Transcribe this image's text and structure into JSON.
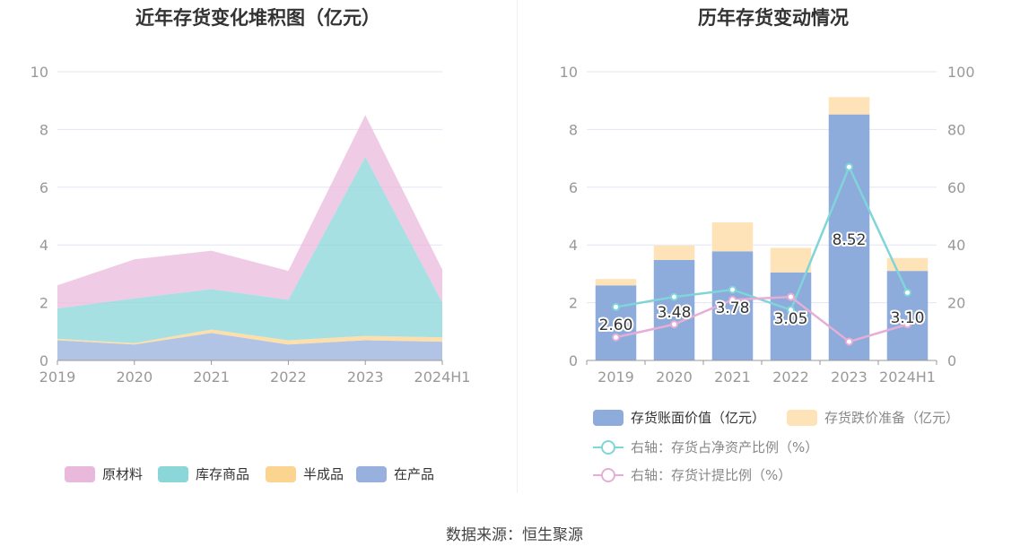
{
  "left_title": "近年存货变化堆积图（亿元）",
  "right_title": "历年存货变动情况",
  "source": "数据来源：恒生聚源",
  "colors": {
    "raw": "#e9b9dc",
    "finished": "#8ad6d9",
    "semi": "#fbd48f",
    "wip": "#98b0de",
    "book": "#8dabdb",
    "reserve": "#fde3b7",
    "line_ratio": "#7fd5d9",
    "line_accrual": "#e6aed6",
    "grid": "#e3e6f3",
    "axis": "#999999"
  },
  "left_legend": [
    "原材料",
    "库存商品",
    "半成品",
    "在产品"
  ],
  "right_legend": {
    "book": "存货账面价值（亿元）",
    "reserve": "存货跌价准备（亿元）",
    "ratio": "右轴：存货占净资产比例（%）",
    "accrual": "右轴：存货计提比例（%）"
  },
  "chart_data": [
    {
      "type": "area",
      "stacked": true,
      "title": "近年存货变化堆积图（亿元）",
      "categories": [
        "2019",
        "2020",
        "2021",
        "2022",
        "2023",
        "2024H1"
      ],
      "ylim": [
        0,
        10
      ],
      "yticks": [
        0,
        2,
        4,
        6,
        8,
        10
      ],
      "grid": true,
      "legend_position": "bottom",
      "series": [
        {
          "name": "在产品",
          "values": [
            0.7,
            0.55,
            0.95,
            0.55,
            0.7,
            0.65
          ]
        },
        {
          "name": "半成品",
          "values": [
            0.05,
            0.05,
            0.12,
            0.15,
            0.15,
            0.15
          ]
        },
        {
          "name": "库存商品",
          "values": [
            1.05,
            1.55,
            1.4,
            1.4,
            6.2,
            1.2
          ]
        },
        {
          "name": "原材料",
          "values": [
            0.8,
            1.35,
            1.33,
            1.0,
            1.45,
            1.15
          ]
        }
      ]
    },
    {
      "type": "bar",
      "stacked": true,
      "title": "历年存货变动情况",
      "categories": [
        "2019",
        "2020",
        "2021",
        "2022",
        "2023",
        "2024H1"
      ],
      "ylim": [
        0,
        10
      ],
      "yticks": [
        0,
        2,
        4,
        6,
        8,
        10
      ],
      "y2lim": [
        0,
        100
      ],
      "y2ticks": [
        0,
        20,
        40,
        60,
        80,
        100
      ],
      "grid": true,
      "legend_position": "bottom",
      "series": [
        {
          "name": "存货账面价值（亿元）",
          "values": [
            2.6,
            3.48,
            3.78,
            3.05,
            8.52,
            3.1
          ],
          "labels": [
            "2.60",
            "3.48",
            "3.78",
            "3.05",
            "8.52",
            "3.10"
          ]
        },
        {
          "name": "存货跌价准备（亿元）",
          "values": [
            0.22,
            0.5,
            1.0,
            0.85,
            0.6,
            0.45
          ]
        }
      ],
      "lines": [
        {
          "name": "右轴：存货占净资产比例（%）",
          "axis": "right",
          "values": [
            18.5,
            22.0,
            24.5,
            17.5,
            67.0,
            23.5
          ]
        },
        {
          "name": "右轴：存货计提比例（%）",
          "axis": "right",
          "values": [
            8.0,
            12.5,
            21.0,
            22.0,
            6.5,
            12.5
          ]
        }
      ]
    }
  ]
}
